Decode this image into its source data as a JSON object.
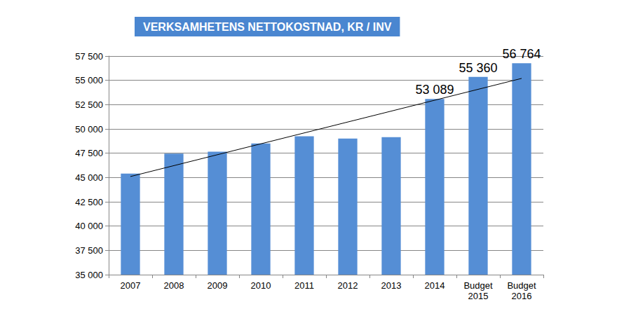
{
  "chart_data": {
    "type": "bar",
    "title": "VERKSAMHETENS NETTOKOSTNAD, KR / INV",
    "categories": [
      "2007",
      "2008",
      "2009",
      "2010",
      "2011",
      "2012",
      "2013",
      "2014",
      "Budget\n2015",
      "Budget\n2016"
    ],
    "values": [
      45400,
      47450,
      47650,
      48500,
      49250,
      49000,
      49150,
      53089,
      55360,
      56764
    ],
    "value_labels": [
      null,
      null,
      null,
      null,
      null,
      null,
      null,
      "53 089",
      "55 360",
      "56 764"
    ],
    "data_labels": true,
    "color": "#558ed5",
    "trend_line": [
      45100,
      55200
    ],
    "ylim": [
      35000,
      57500
    ],
    "yticks": [
      {
        "value": 35000,
        "label": "35 000"
      },
      {
        "value": 37500,
        "label": "37 500"
      },
      {
        "value": 40000,
        "label": "40 000"
      },
      {
        "value": 42500,
        "label": "42 500"
      },
      {
        "value": 45000,
        "label": "45 000"
      },
      {
        "value": 47500,
        "label": "47 500"
      },
      {
        "value": 50000,
        "label": "50 000"
      },
      {
        "value": 52500,
        "label": "52 500"
      },
      {
        "value": 55000,
        "label": "55 000"
      },
      {
        "value": 57500,
        "label": "57 500"
      }
    ],
    "grid": true
  }
}
